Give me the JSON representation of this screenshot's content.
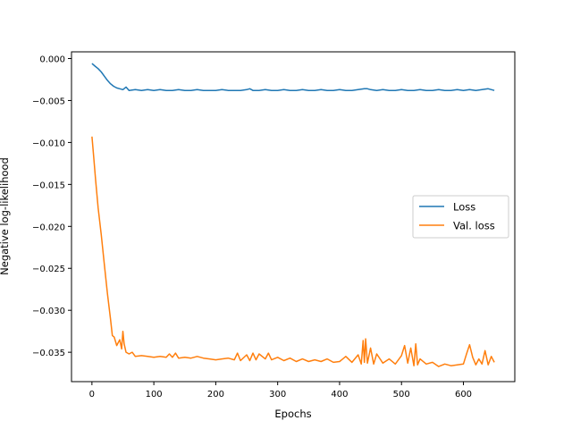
{
  "chart_data": {
    "type": "line",
    "title": "",
    "xlabel": "Epochs",
    "ylabel": "Negative log-likelihood",
    "xlim": [
      -33,
      683
    ],
    "ylim": [
      -0.0385,
      0.0008
    ],
    "xticks": [
      0,
      100,
      200,
      300,
      400,
      500,
      600
    ],
    "xtick_labels": [
      "0",
      "100",
      "200",
      "300",
      "400",
      "500",
      "600"
    ],
    "yticks": [
      0.0,
      -0.005,
      -0.01,
      -0.015,
      -0.02,
      -0.025,
      -0.03,
      -0.035
    ],
    "ytick_labels": [
      "0.000",
      "−0.005",
      "−0.010",
      "−0.015",
      "−0.020",
      "−0.025",
      "−0.030",
      "−0.035"
    ],
    "grid": false,
    "legend": {
      "placement": "center-right"
    },
    "series": [
      {
        "name": "Loss",
        "color": "#1f77b4",
        "x": [
          0,
          5,
          10,
          15,
          20,
          25,
          30,
          35,
          40,
          45,
          50,
          55,
          60,
          70,
          80,
          90,
          100,
          110,
          120,
          130,
          140,
          150,
          160,
          170,
          180,
          190,
          200,
          210,
          220,
          230,
          240,
          250,
          255,
          260,
          270,
          280,
          290,
          300,
          310,
          320,
          330,
          340,
          350,
          360,
          370,
          380,
          390,
          400,
          410,
          420,
          430,
          440,
          445,
          450,
          460,
          470,
          480,
          490,
          500,
          510,
          520,
          530,
          540,
          550,
          560,
          570,
          580,
          590,
          600,
          610,
          620,
          630,
          640,
          650
        ],
        "y": [
          -0.0006,
          -0.0009,
          -0.0012,
          -0.0016,
          -0.0021,
          -0.0026,
          -0.003,
          -0.0033,
          -0.0035,
          -0.0036,
          -0.0037,
          -0.0034,
          -0.0038,
          -0.0037,
          -0.0038,
          -0.0037,
          -0.0038,
          -0.0037,
          -0.0038,
          -0.0038,
          -0.0037,
          -0.0038,
          -0.0038,
          -0.0037,
          -0.0038,
          -0.0038,
          -0.0038,
          -0.0037,
          -0.0038,
          -0.0038,
          -0.0038,
          -0.0037,
          -0.0036,
          -0.0038,
          -0.0038,
          -0.0037,
          -0.0038,
          -0.0038,
          -0.0037,
          -0.0038,
          -0.0038,
          -0.0037,
          -0.0038,
          -0.0038,
          -0.0037,
          -0.0038,
          -0.0038,
          -0.0037,
          -0.0038,
          -0.0038,
          -0.0037,
          -0.0036,
          -0.0036,
          -0.0037,
          -0.0038,
          -0.0037,
          -0.0038,
          -0.0038,
          -0.0037,
          -0.0038,
          -0.0038,
          -0.0037,
          -0.0038,
          -0.0038,
          -0.0037,
          -0.0038,
          -0.0038,
          -0.0037,
          -0.0038,
          -0.0037,
          -0.0038,
          -0.0037,
          -0.0036,
          -0.0038
        ]
      },
      {
        "name": "Val. loss",
        "color": "#ff7f0e",
        "x": [
          0,
          3,
          6,
          10,
          15,
          20,
          25,
          30,
          33,
          36,
          40,
          45,
          48,
          50,
          52,
          55,
          60,
          65,
          70,
          80,
          90,
          100,
          110,
          120,
          125,
          130,
          135,
          140,
          150,
          160,
          170,
          180,
          190,
          200,
          210,
          220,
          230,
          235,
          240,
          250,
          255,
          260,
          265,
          270,
          280,
          285,
          290,
          300,
          310,
          320,
          330,
          340,
          350,
          360,
          370,
          380,
          390,
          400,
          410,
          420,
          430,
          435,
          438,
          440,
          442,
          445,
          450,
          455,
          460,
          470,
          480,
          490,
          500,
          505,
          510,
          515,
          520,
          523,
          526,
          530,
          540,
          550,
          560,
          570,
          580,
          590,
          600,
          605,
          610,
          615,
          620,
          625,
          630,
          635,
          640,
          645,
          650
        ],
        "y": [
          -0.0093,
          -0.0118,
          -0.0145,
          -0.0178,
          -0.021,
          -0.0245,
          -0.028,
          -0.031,
          -0.033,
          -0.0332,
          -0.0342,
          -0.0335,
          -0.0346,
          -0.0325,
          -0.034,
          -0.035,
          -0.0352,
          -0.035,
          -0.0355,
          -0.0354,
          -0.0355,
          -0.0356,
          -0.0355,
          -0.0356,
          -0.0352,
          -0.0356,
          -0.0351,
          -0.0357,
          -0.0356,
          -0.0357,
          -0.0355,
          -0.0357,
          -0.0358,
          -0.0359,
          -0.0358,
          -0.0357,
          -0.0359,
          -0.0351,
          -0.036,
          -0.0353,
          -0.036,
          -0.0351,
          -0.0359,
          -0.0352,
          -0.0358,
          -0.0351,
          -0.0359,
          -0.0356,
          -0.036,
          -0.0357,
          -0.0361,
          -0.0358,
          -0.0361,
          -0.0359,
          -0.0361,
          -0.0358,
          -0.0362,
          -0.0361,
          -0.0355,
          -0.0362,
          -0.0353,
          -0.0364,
          -0.0336,
          -0.0362,
          -0.0334,
          -0.0363,
          -0.0345,
          -0.0364,
          -0.0352,
          -0.0363,
          -0.0358,
          -0.0364,
          -0.0354,
          -0.0342,
          -0.0363,
          -0.0345,
          -0.0366,
          -0.034,
          -0.0365,
          -0.0358,
          -0.0364,
          -0.0362,
          -0.0367,
          -0.0364,
          -0.0366,
          -0.0365,
          -0.0364,
          -0.0352,
          -0.0341,
          -0.0356,
          -0.0365,
          -0.0358,
          -0.0364,
          -0.0348,
          -0.0365,
          -0.0355,
          -0.0362
        ]
      }
    ]
  }
}
